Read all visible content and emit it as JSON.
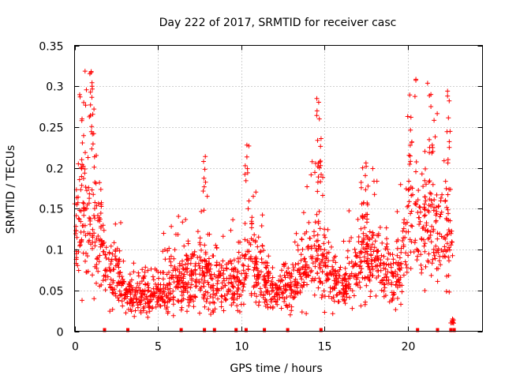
{
  "chart_data": {
    "type": "scatter",
    "title": "Day 222 of 2017, SRMTID for receiver casc",
    "xlabel": "GPS time / hours",
    "ylabel": "SRMTID / TECUs",
    "xlim": [
      0,
      24.5
    ],
    "ylim": [
      0,
      0.35
    ],
    "x_ticks": [
      0,
      5,
      10,
      15,
      20
    ],
    "x_tick_labels": [
      "0",
      "5",
      "10",
      "15",
      "20"
    ],
    "y_ticks": [
      0,
      0.05,
      0.1,
      0.15,
      0.2,
      0.25,
      0.3,
      0.35
    ],
    "y_tick_labels": [
      "0",
      "0.05",
      "0.1",
      "0.15",
      "0.2",
      "0.25",
      "0.3",
      "0.35"
    ],
    "grid": true,
    "marker": "+",
    "color": "#ff0000",
    "series": [
      {
        "name": "SRMTID",
        "baseline_profile": {
          "x": [
            0,
            0.5,
            1.0,
            1.5,
            2.0,
            2.5,
            3.0,
            4.0,
            5.0,
            6.0,
            7.0,
            8.0,
            9.0,
            10.0,
            10.5,
            11.0,
            12.0,
            13.0,
            14.0,
            14.5,
            15.0,
            16.0,
            17.0,
            18.0,
            19.0,
            19.5,
            20.0,
            21.0,
            22.0,
            22.7
          ],
          "y": [
            0.13,
            0.15,
            0.13,
            0.12,
            0.06,
            0.07,
            0.05,
            0.045,
            0.05,
            0.06,
            0.065,
            0.065,
            0.06,
            0.06,
            0.1,
            0.07,
            0.05,
            0.05,
            0.08,
            0.1,
            0.08,
            0.05,
            0.08,
            0.09,
            0.07,
            0.07,
            0.13,
            0.14,
            0.12,
            0.11
          ]
        },
        "spikes": [
          {
            "x": 0.55,
            "y": 0.28
          },
          {
            "x": 1.0,
            "y": 0.318
          },
          {
            "x": 1.05,
            "y": 0.3
          },
          {
            "x": 7.85,
            "y": 0.214
          },
          {
            "x": 10.35,
            "y": 0.228
          },
          {
            "x": 14.55,
            "y": 0.285
          },
          {
            "x": 14.7,
            "y": 0.26
          },
          {
            "x": 17.3,
            "y": 0.2
          },
          {
            "x": 17.5,
            "y": 0.206
          },
          {
            "x": 20.2,
            "y": 0.262
          },
          {
            "x": 21.4,
            "y": 0.29
          },
          {
            "x": 22.4,
            "y": 0.294
          },
          {
            "x": 22.7,
            "y": 0.015
          }
        ],
        "zero_markers_x": [
          1.8,
          3.2,
          6.4,
          7.8,
          8.4,
          9.7,
          10.3,
          11.4,
          12.8,
          14.8,
          20.6,
          21.8,
          22.6,
          22.8
        ]
      }
    ]
  }
}
